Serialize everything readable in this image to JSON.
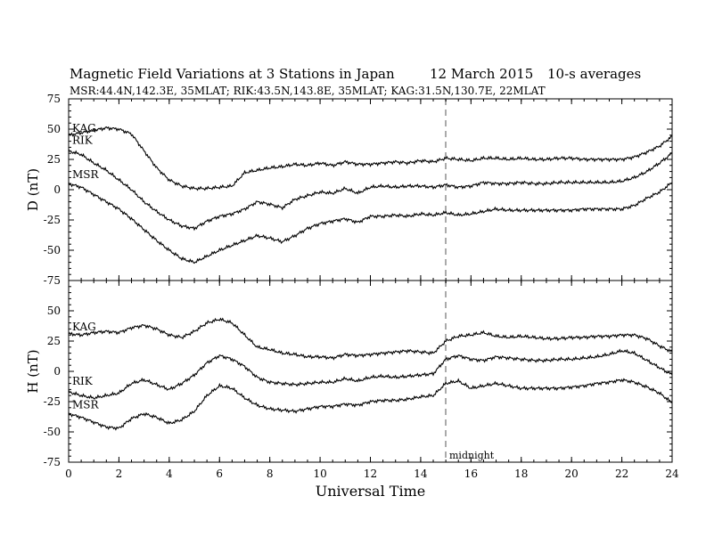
{
  "title": {
    "main": "Magnetic Field Variations at 3 Stations in Japan",
    "date": "12  March   2015",
    "avg": "10-s averages",
    "stations": "MSR:44.4N,142.3E, 35MLAT;  RIK:43.5N,143.8E, 35MLAT;  KAG:31.5N,130.7E, 22MLAT"
  },
  "colors": {
    "trace": "#000000",
    "midnight_line": "#aaaaaa",
    "frame": "#000000"
  },
  "annotations": {
    "midnight": "midnight"
  },
  "chart_data": [
    {
      "type": "line",
      "panel": "D",
      "title": "",
      "xlabel": "",
      "ylabel": "D (nT)",
      "xlim": [
        0,
        24
      ],
      "ylim": [
        -75,
        75
      ],
      "xticks": [
        "0",
        "2",
        "4",
        "6",
        "8",
        "10",
        "12",
        "14",
        "16",
        "18",
        "20",
        "22",
        "24"
      ],
      "yticks": [
        "75",
        "50",
        "25",
        "0",
        "-25",
        "-50",
        "-75"
      ],
      "x": [
        0,
        0.5,
        1,
        1.5,
        2,
        2.5,
        3,
        3.5,
        4,
        4.5,
        5,
        5.5,
        6,
        6.5,
        7,
        7.5,
        8,
        8.5,
        9,
        9.5,
        10,
        10.5,
        11,
        11.5,
        12,
        12.5,
        13,
        13.5,
        14,
        14.5,
        15,
        15.5,
        16,
        16.5,
        17,
        17.5,
        18,
        18.5,
        19,
        19.5,
        20,
        20.5,
        21,
        21.5,
        22,
        22.5,
        23,
        23.5,
        24
      ],
      "series": [
        {
          "name": "KAG",
          "values": [
            45,
            47,
            49,
            51,
            50,
            46,
            32,
            18,
            8,
            3,
            1,
            1,
            2,
            3,
            14,
            16,
            18,
            19,
            21,
            20,
            22,
            20,
            23,
            21,
            21,
            22,
            23,
            22,
            24,
            23,
            26,
            25,
            24,
            26,
            26,
            25,
            26,
            25,
            25,
            26,
            26,
            25,
            25,
            25,
            25,
            27,
            31,
            36,
            44
          ]
        },
        {
          "name": "RIK",
          "values": [
            32,
            29,
            22,
            16,
            8,
            0,
            -10,
            -18,
            -25,
            -30,
            -32,
            -26,
            -22,
            -20,
            -16,
            -10,
            -12,
            -15,
            -8,
            -5,
            -2,
            -3,
            1,
            -3,
            2,
            3,
            2,
            3,
            3,
            2,
            4,
            2,
            3,
            6,
            5,
            5,
            6,
            5,
            5,
            6,
            6,
            6,
            6,
            6,
            7,
            10,
            15,
            22,
            30
          ]
        },
        {
          "name": "MSR",
          "values": [
            5,
            2,
            -4,
            -10,
            -16,
            -24,
            -33,
            -42,
            -50,
            -57,
            -60,
            -55,
            -50,
            -46,
            -42,
            -38,
            -40,
            -43,
            -38,
            -32,
            -28,
            -26,
            -24,
            -27,
            -22,
            -22,
            -21,
            -22,
            -20,
            -21,
            -19,
            -21,
            -20,
            -18,
            -16,
            -17,
            -17,
            -17,
            -17,
            -17,
            -17,
            -16,
            -16,
            -16,
            -16,
            -13,
            -7,
            -2,
            6
          ]
        }
      ]
    },
    {
      "type": "line",
      "panel": "H",
      "title": "",
      "xlabel": "Universal Time",
      "ylabel": "H (nT)",
      "xlim": [
        0,
        24
      ],
      "ylim": [
        -75,
        75
      ],
      "xticks": [
        "0",
        "2",
        "4",
        "6",
        "8",
        "10",
        "12",
        "14",
        "16",
        "18",
        "20",
        "22",
        "24"
      ],
      "yticks": [
        "75",
        "50",
        "25",
        "0",
        "-25",
        "-50",
        "-75"
      ],
      "x": [
        0,
        0.5,
        1,
        1.5,
        2,
        2.5,
        3,
        3.5,
        4,
        4.5,
        5,
        5.5,
        6,
        6.5,
        7,
        7.5,
        8,
        8.5,
        9,
        9.5,
        10,
        10.5,
        11,
        11.5,
        12,
        12.5,
        13,
        13.5,
        14,
        14.5,
        15,
        15.5,
        16,
        16.5,
        17,
        17.5,
        18,
        18.5,
        19,
        19.5,
        20,
        20.5,
        21,
        21.5,
        22,
        22.5,
        23,
        23.5,
        24
      ],
      "series": [
        {
          "name": "KAG",
          "values": [
            31,
            30,
            32,
            33,
            32,
            36,
            38,
            35,
            30,
            28,
            33,
            40,
            43,
            40,
            30,
            20,
            18,
            15,
            14,
            12,
            12,
            11,
            14,
            13,
            14,
            15,
            16,
            17,
            16,
            15,
            25,
            29,
            30,
            32,
            29,
            28,
            29,
            28,
            27,
            27,
            28,
            28,
            29,
            29,
            30,
            30,
            27,
            21,
            16
          ]
        },
        {
          "name": "RIK",
          "values": [
            -17,
            -20,
            -22,
            -20,
            -18,
            -10,
            -7,
            -11,
            -15,
            -10,
            -3,
            7,
            13,
            10,
            4,
            -5,
            -9,
            -10,
            -11,
            -10,
            -9,
            -9,
            -6,
            -8,
            -5,
            -4,
            -5,
            -4,
            -3,
            -2,
            10,
            13,
            10,
            9,
            12,
            11,
            10,
            9,
            9,
            10,
            10,
            11,
            12,
            14,
            17,
            15,
            9,
            3,
            -3
          ]
        },
        {
          "name": "MSR",
          "values": [
            -35,
            -38,
            -42,
            -46,
            -47,
            -39,
            -35,
            -38,
            -43,
            -40,
            -33,
            -20,
            -12,
            -14,
            -22,
            -28,
            -31,
            -32,
            -33,
            -31,
            -29,
            -29,
            -27,
            -28,
            -25,
            -24,
            -24,
            -23,
            -21,
            -20,
            -10,
            -8,
            -14,
            -12,
            -10,
            -12,
            -14,
            -14,
            -14,
            -14,
            -13,
            -12,
            -10,
            -9,
            -7,
            -9,
            -13,
            -18,
            -26
          ]
        }
      ]
    }
  ]
}
